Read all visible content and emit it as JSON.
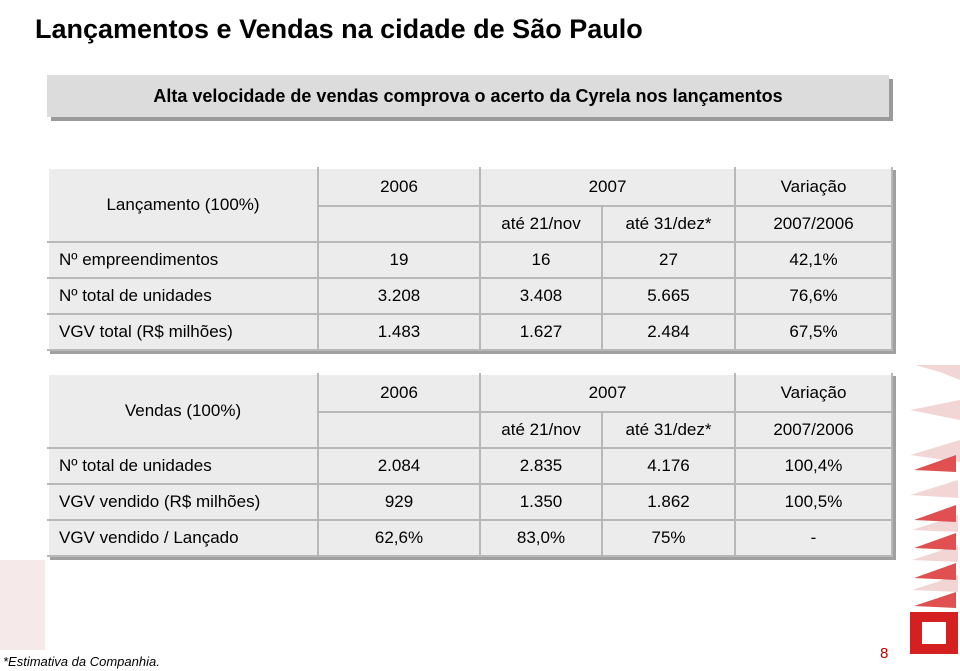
{
  "title": "Lançamentos e Vendas na cidade de São Paulo",
  "subtitle": "Alta velocidade de vendas comprova o acerto da Cyrela nos lançamentos",
  "tables": [
    {
      "header": {
        "label": "Lançamento (100%)",
        "year1": "2006",
        "year2": "2007",
        "variation": "Variação",
        "sub1": "até 21/nov",
        "sub2": "até 31/dez*",
        "sub_variation": "2007/2006"
      },
      "rows": [
        [
          "Nº empreendimentos",
          "19",
          "16",
          "27",
          "42,1%"
        ],
        [
          "Nº total de unidades",
          "3.208",
          "3.408",
          "5.665",
          "76,6%"
        ],
        [
          "VGV total (R$ milhões)",
          "1.483",
          "1.627",
          "2.484",
          "67,5%"
        ]
      ]
    },
    {
      "header": {
        "label": "Vendas (100%)",
        "year1": "2006",
        "year2": "2007",
        "variation": "Variação",
        "sub1": "até 21/nov",
        "sub2": "até 31/dez*",
        "sub_variation": "2007/2006"
      },
      "rows": [
        [
          "Nº total de unidades",
          "2.084",
          "2.835",
          "4.176",
          "100,4%"
        ],
        [
          "VGV vendido (R$ milhões)",
          "929",
          "1.350",
          "1.862",
          "100,5%"
        ],
        [
          "VGV vendido / Lançado",
          "62,6%",
          "83,0%",
          "75%",
          "-"
        ]
      ]
    }
  ],
  "footnote": "*Estimativa da Companhia.",
  "page_number": "8"
}
